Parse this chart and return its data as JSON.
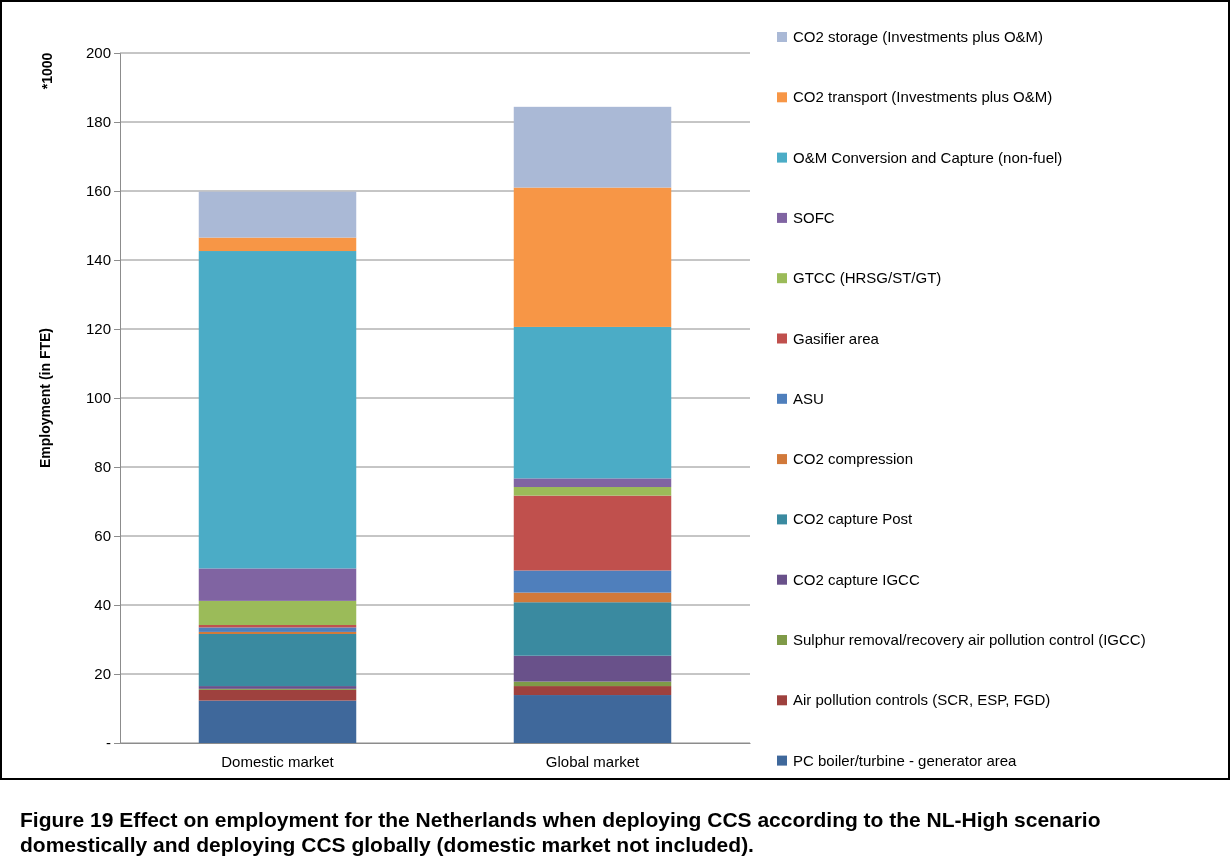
{
  "chart_data": {
    "type": "bar",
    "stacked": true,
    "ylabel": "Employment (in FTE)",
    "categories": [
      "Domestic market",
      "Global market"
    ],
    "ylim": [
      0,
      200
    ],
    "yticks": [
      {
        "value": 0,
        "label": "-"
      },
      20,
      40,
      60,
      80,
      100,
      120,
      140,
      160,
      180,
      200
    ],
    "grid": "y",
    "legend": "right",
    "annotations": [
      "*1000",
      "Figure 19 Effect on employment for the Netherlands when deploying CCS according to the NL-High scenario domestically and deploying CCS globally (domestic market not included)."
    ],
    "series": [
      {
        "name": "PC boiler/turbine - generator area",
        "color": "#3f689b",
        "values": [
          12.3,
          13.9
        ]
      },
      {
        "name": "Air pollution controls (SCR, ESP, FGD)",
        "color": "#9e413e",
        "values": [
          3.1,
          2.6
        ]
      },
      {
        "name": "Sulphur removal/recovery air pollution control (IGCC)",
        "color": "#7f9a48",
        "values": [
          0.3,
          1.3
        ]
      },
      {
        "name": "CO2 capture IGCC",
        "color": "#69518a",
        "values": [
          0.8,
          7.5
        ]
      },
      {
        "name": "CO2 capture Post",
        "color": "#3a8aa0",
        "values": [
          15.1,
          15.5
        ]
      },
      {
        "name": "CO2 compression",
        "color": "#d1793a",
        "values": [
          0.6,
          2.8
        ]
      },
      {
        "name": "ASU",
        "color": "#4f7fbc",
        "values": [
          1.3,
          6.4
        ]
      },
      {
        "name": "Gasifier area",
        "color": "#c0504d",
        "values": [
          0.7,
          21.7
        ]
      },
      {
        "name": "GTCC (HRSG/ST/GT)",
        "color": "#9bbb59",
        "values": [
          7.0,
          2.5
        ]
      },
      {
        "name": "SOFC",
        "color": "#8064a2",
        "values": [
          9.4,
          2.5
        ]
      },
      {
        "name": "O&M Conversion and Capture (non-fuel)",
        "color": "#4bacc6",
        "values": [
          92.0,
          43.9
        ]
      },
      {
        "name": "CO2 transport (Investments plus O&M)",
        "color": "#f79646",
        "values": [
          3.9,
          40.4
        ]
      },
      {
        "name": "CO2 storage (Investments plus O&M)",
        "color": "#aab9d6",
        "values": [
          13.3,
          23.4
        ]
      }
    ]
  }
}
